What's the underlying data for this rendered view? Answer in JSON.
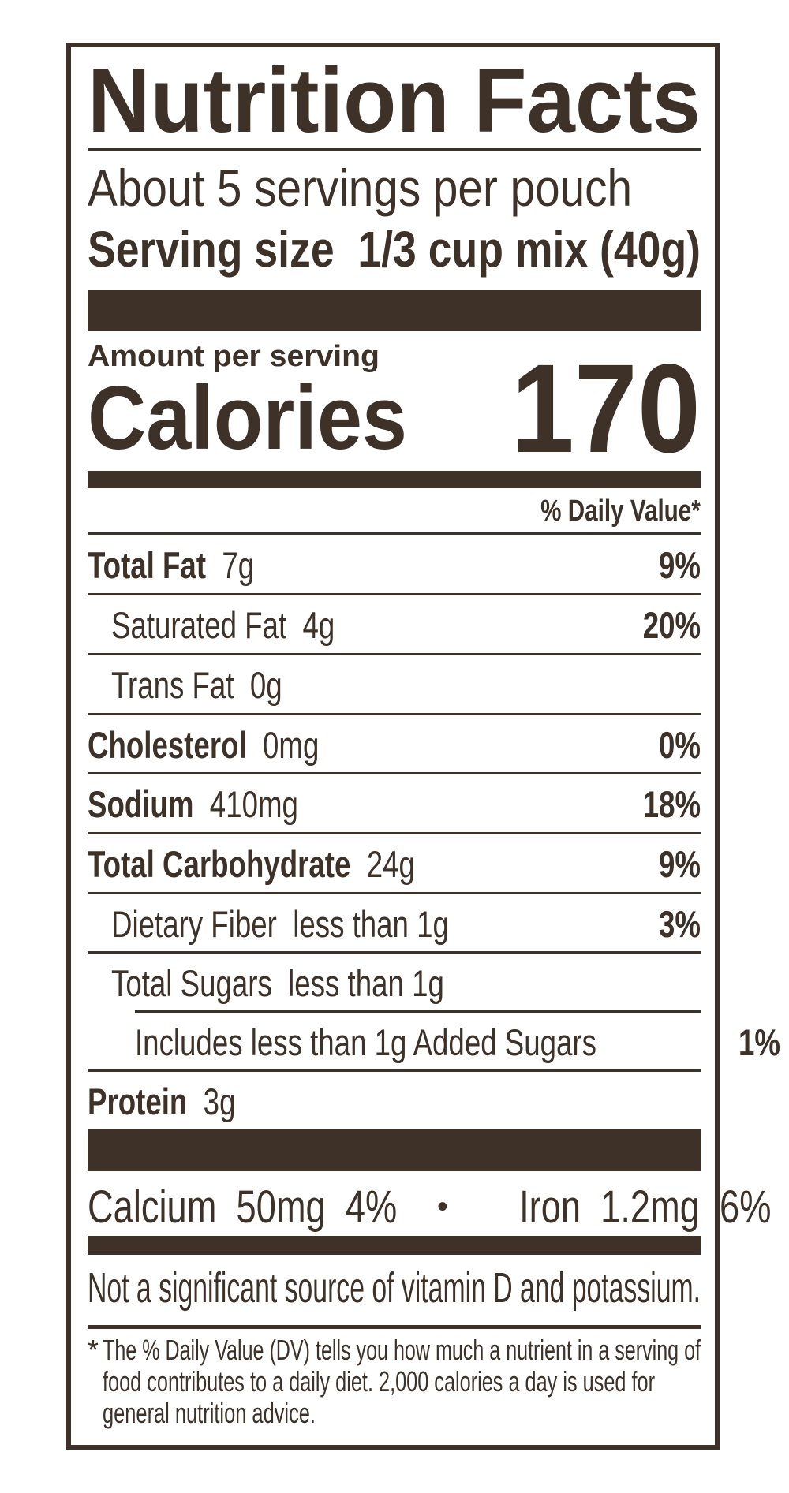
{
  "title": "Nutrition Facts",
  "servings_per_container": "About 5 servings per pouch",
  "serving_size_label": "Serving size",
  "serving_size_value": "1/3 cup mix (40g)",
  "amount_per_serving": "Amount per serving",
  "calories_label": "Calories",
  "calories_value": "170",
  "daily_value_header": "% Daily Value*",
  "nutrients": [
    {
      "name": "Total Fat",
      "amount": "7g",
      "dv": "9%",
      "indent": 0
    },
    {
      "name": "Saturated Fat",
      "amount": "4g",
      "dv": "20%",
      "indent": 1
    },
    {
      "name": "Trans Fat",
      "amount": "0g",
      "dv": "",
      "indent": 1
    },
    {
      "name": "Cholesterol",
      "amount": "0mg",
      "dv": "0%",
      "indent": 0
    },
    {
      "name": "Sodium",
      "amount": "410mg",
      "dv": "18%",
      "indent": 0
    },
    {
      "name": "Total Carbohydrate",
      "amount": "24g",
      "dv": "9%",
      "indent": 0
    },
    {
      "name": "Dietary Fiber",
      "amount": "less than 1g",
      "dv": "3%",
      "indent": 1
    },
    {
      "name": "Total Sugars",
      "amount": "less than 1g",
      "dv": "",
      "indent": 1
    },
    {
      "name": "Includes less than 1g Added Sugars",
      "amount": "",
      "dv": "1%",
      "indent": 2
    },
    {
      "name": "Protein",
      "amount": "3g",
      "dv": "",
      "indent": 0
    }
  ],
  "minerals": {
    "calcium": "Calcium  50mg  4%",
    "separator": "•",
    "iron": "Iron  1.2mg  6%"
  },
  "not_significant": "Not a significant source of vitamin D and potassium.",
  "footnote": {
    "asterisk": "*",
    "lines": [
      "The % Daily Value (DV) tells you how much a nutrient in a serving of",
      "food contributes to a daily diet. 2,000 calories a day is used for",
      "general nutrition advice."
    ]
  },
  "colors": {
    "ink": "#3d3128",
    "background": "#ffffff"
  }
}
